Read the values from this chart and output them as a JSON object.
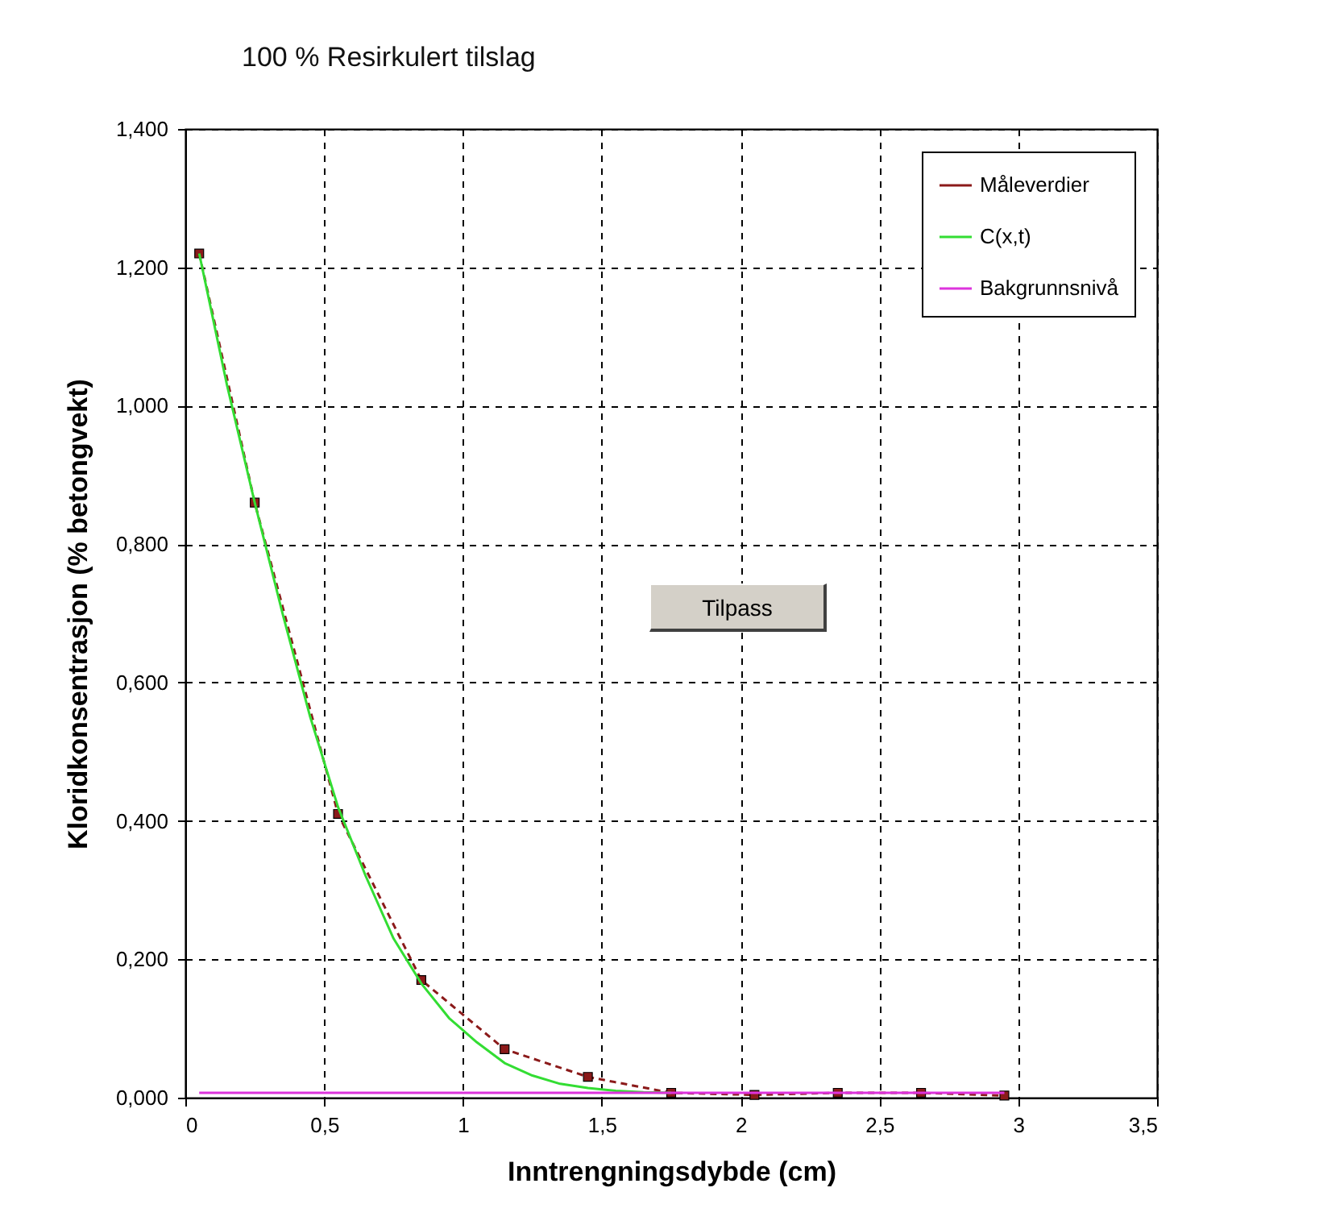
{
  "chart_data": {
    "type": "line",
    "title": "100 % Resirkulert tilslag",
    "xlabel": "Inntrengningsdybde (cm)",
    "ylabel": "Kloridkonsentrasjon (% betongvekt)",
    "series": [
      {
        "name": "Måleverdier",
        "color": "#8b1a1a",
        "line_style": "dashed",
        "marker": "square",
        "x": [
          0.05,
          0.25,
          0.55,
          0.85,
          1.15,
          1.45,
          1.75,
          2.05,
          2.35,
          2.65,
          2.95
        ],
        "values": [
          1.22,
          0.86,
          0.41,
          0.17,
          0.07,
          0.03,
          0.007,
          0.004,
          0.007,
          0.007,
          0.003
        ]
      },
      {
        "name": "C(x,t)",
        "color": "#33dd33",
        "line_style": "solid",
        "marker": "none",
        "x": [
          0.05,
          0.15,
          0.25,
          0.35,
          0.45,
          0.55,
          0.65,
          0.75,
          0.85,
          0.95,
          1.05,
          1.15,
          1.25,
          1.35,
          1.45,
          1.55,
          1.65,
          1.75
        ],
        "values": [
          1.22,
          1.03,
          0.86,
          0.7,
          0.55,
          0.42,
          0.32,
          0.23,
          0.165,
          0.115,
          0.08,
          0.05,
          0.032,
          0.02,
          0.014,
          0.01,
          0.008,
          0.007
        ]
      },
      {
        "name": "Bakgrunnsnivå",
        "color": "#dd33dd",
        "line_style": "solid",
        "marker": "none",
        "x": [
          0.05,
          2.95
        ],
        "values": [
          0.007,
          0.007
        ]
      }
    ],
    "xlim": [
      0,
      3.5
    ],
    "xticks": [
      0,
      {
        "value": 0.5,
        "label": "0,5"
      },
      1,
      {
        "value": 1.5,
        "label": "1,5"
      },
      2,
      {
        "value": 2.5,
        "label": "2,5"
      },
      3,
      {
        "value": 3.5,
        "label": "3,5"
      }
    ],
    "ylim": [
      0,
      1.4
    ],
    "yticks": [
      {
        "value": 0,
        "label": "0,000"
      },
      {
        "value": 0.2,
        "label": "0,200"
      },
      {
        "value": 0.4,
        "label": "0,400"
      },
      {
        "value": 0.6,
        "label": "0,600"
      },
      {
        "value": 0.8,
        "label": "0,800"
      },
      {
        "value": 1,
        "label": "1,000"
      },
      {
        "value": 1.2,
        "label": "1,200"
      },
      {
        "value": 1.4,
        "label": "1,400"
      }
    ],
    "grid": true,
    "legend": "top right",
    "annotations": [
      "Tilpass"
    ]
  }
}
